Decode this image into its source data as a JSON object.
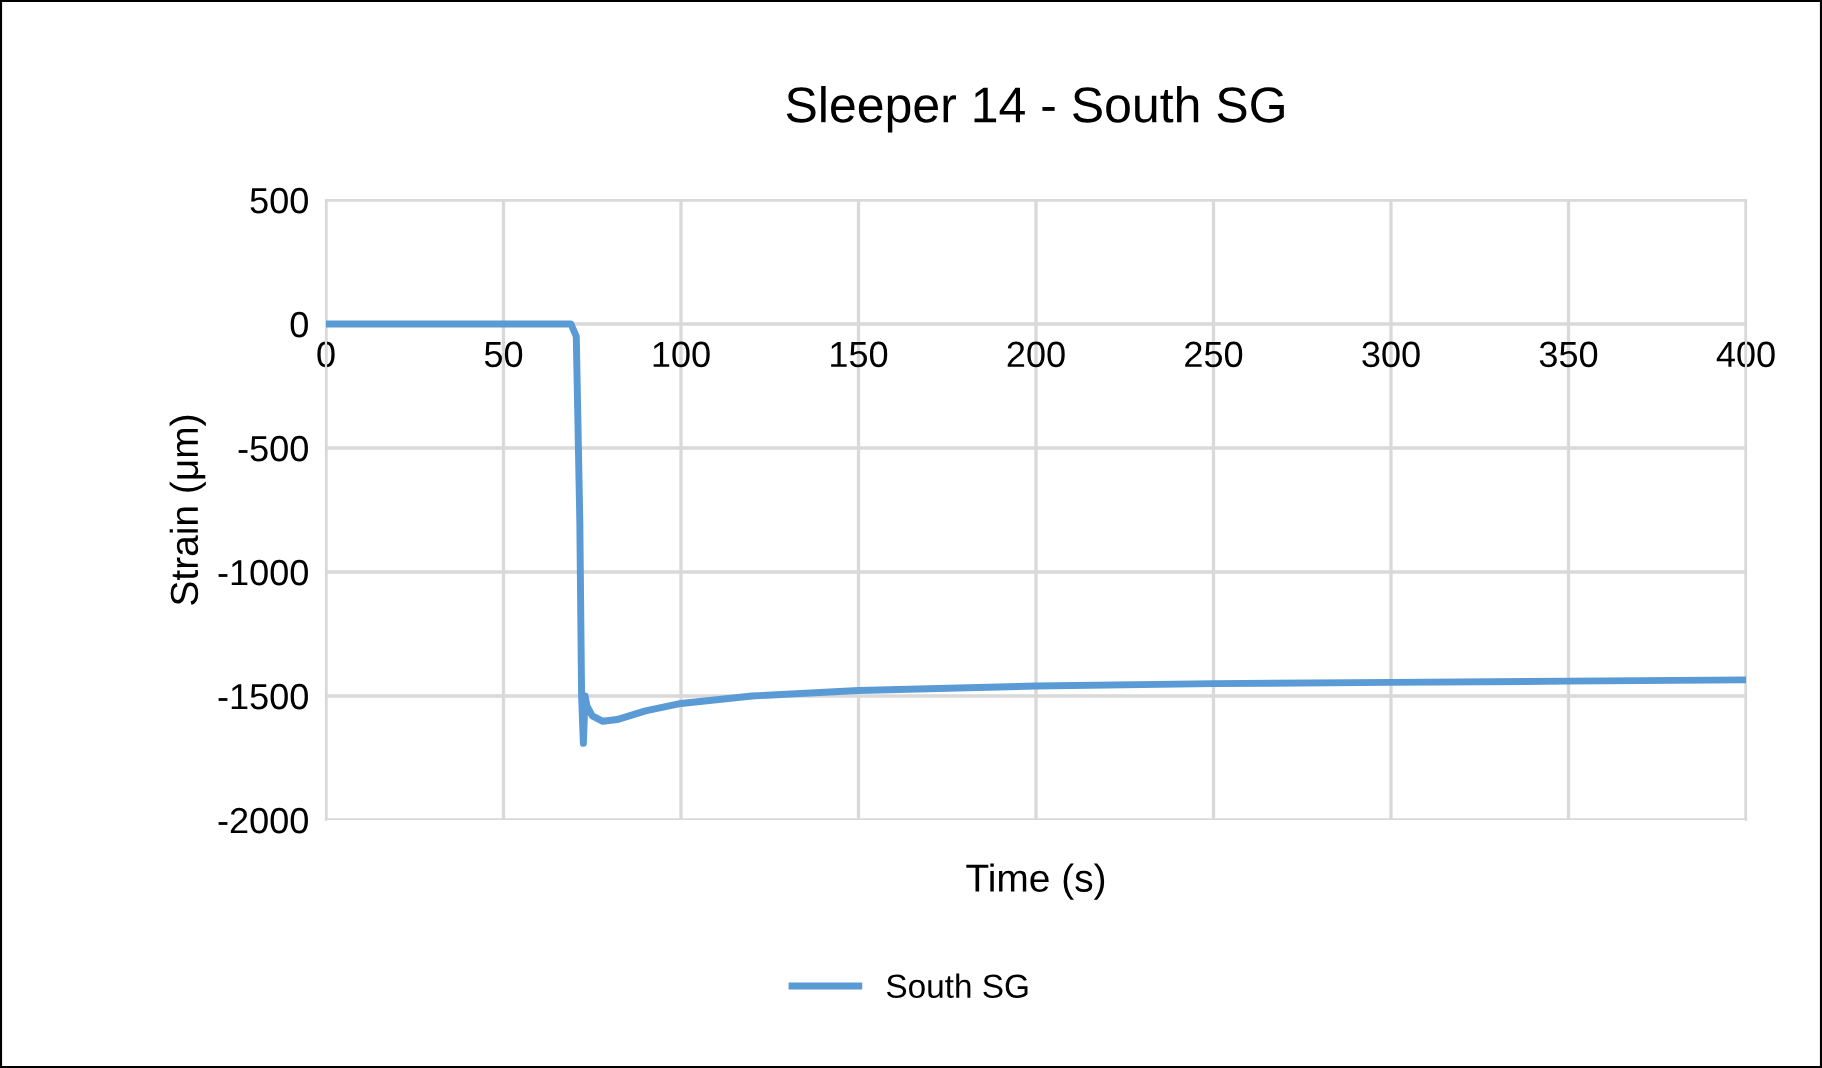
{
  "chart_data": {
    "type": "line",
    "title": "Sleeper 14 - South SG",
    "xlabel": "Time (s)",
    "ylabel": "Strain (μm)",
    "series": [
      {
        "name": "South SG",
        "color": "#5b9bd5",
        "x": [
          0,
          20,
          40,
          60,
          69,
          70.5,
          71.5,
          72,
          72.5,
          73,
          73.5,
          75,
          78,
          82,
          90,
          100,
          120,
          150,
          200,
          250,
          300,
          350,
          400
        ],
        "values": [
          0,
          0,
          0,
          0,
          0,
          -50,
          -800,
          -1500,
          -1691,
          -1500,
          -1540,
          -1580,
          -1602,
          -1595,
          -1560,
          -1530,
          -1500,
          -1478,
          -1460,
          -1450,
          -1445,
          -1440,
          -1435
        ]
      }
    ],
    "xlim": [
      0,
      400
    ],
    "xticks": [
      0,
      50,
      100,
      150,
      200,
      250,
      300,
      350,
      400
    ],
    "ylim": [
      -2000,
      500
    ],
    "yticks": [
      -2000,
      -1500,
      -1000,
      -500,
      0,
      500
    ],
    "grid": true,
    "legend": "bottom",
    "marker": "none",
    "line_style": "solid"
  }
}
